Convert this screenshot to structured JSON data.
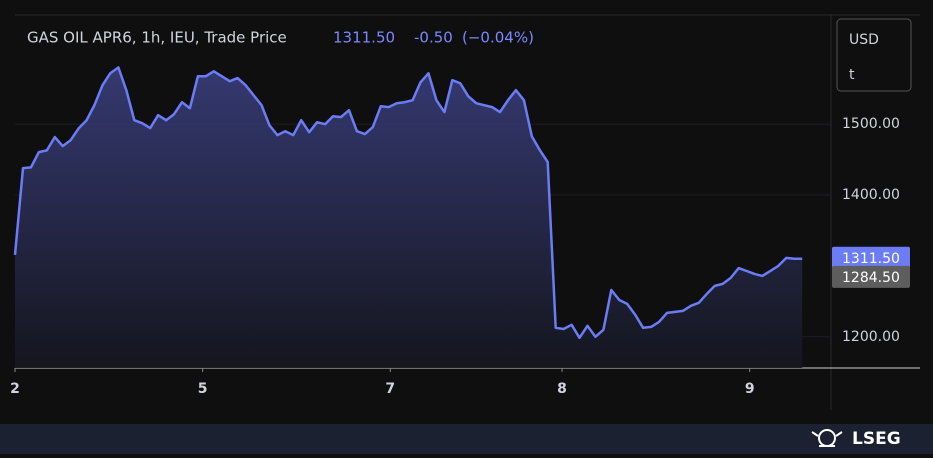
{
  "chart_data": {
    "type": "area",
    "title": "GAS OIL APR6, 1h, IEU, Trade Price",
    "quote": {
      "last": "1311.50",
      "change": "-0.50",
      "change_pct": "(−0.04%)"
    },
    "units": [
      "USD",
      "t"
    ],
    "brand": "LSEG",
    "series": [
      {
        "name": "GAS OIL APR6",
        "color": "#6b7cf5",
        "values": [
          1315.5,
          1438,
          1439,
          1460.6,
          1463,
          1481.7,
          1469,
          1477.5,
          1494,
          1505.6,
          1527,
          1555,
          1572,
          1580,
          1548,
          1505.6,
          1501.4,
          1494.4,
          1512.7,
          1505.6,
          1514,
          1531,
          1522.5,
          1567.6,
          1567.6,
          1574.6,
          1567.6,
          1560.6,
          1565,
          1555,
          1541,
          1527,
          1498.6,
          1484.5,
          1490,
          1484.5,
          1505.6,
          1488.7,
          1502.8,
          1500,
          1511.3,
          1510,
          1519.7,
          1490,
          1486,
          1495.8,
          1525.4,
          1524,
          1529.6,
          1531,
          1533.8,
          1559,
          1571.8,
          1533.8,
          1517,
          1562,
          1557.7,
          1539.4,
          1529.6,
          1526.8,
          1524,
          1517,
          1533.8,
          1548,
          1533.8,
          1483,
          1463.4,
          1446.5,
          1212.7,
          1211,
          1217,
          1198.6,
          1215.5,
          1200,
          1209.9,
          1266,
          1252,
          1246.5,
          1231,
          1212.7,
          1214,
          1221,
          1233.8,
          1235.2,
          1236.6,
          1243.7,
          1248,
          1260.6,
          1271.8,
          1274.6,
          1283,
          1297,
          1293,
          1288.7,
          1286,
          1293,
          1300,
          1311.3,
          1310,
          1310
        ]
      }
    ],
    "xlim": [
      0,
      102.5
    ],
    "xticks": [
      {
        "value": 0,
        "label": "2"
      },
      {
        "value": 23.6,
        "label": "5"
      },
      {
        "value": 47.2,
        "label": "7"
      },
      {
        "value": 68.8,
        "label": "8"
      },
      {
        "value": 92.4,
        "label": "9"
      }
    ],
    "ylim": [
      1156,
      1654
    ],
    "yticks": [
      {
        "value": 1200,
        "label": "1200.00"
      },
      {
        "value": 1400,
        "label": "1400.00"
      },
      {
        "value": 1500,
        "label": "1500.00"
      }
    ],
    "last_price": {
      "value": 1311.5,
      "label": "1311.50",
      "color": "#6b7cf5"
    },
    "reference_price": {
      "value": 1284.5,
      "label": "1284.50",
      "color": "#5d5d5d"
    }
  }
}
